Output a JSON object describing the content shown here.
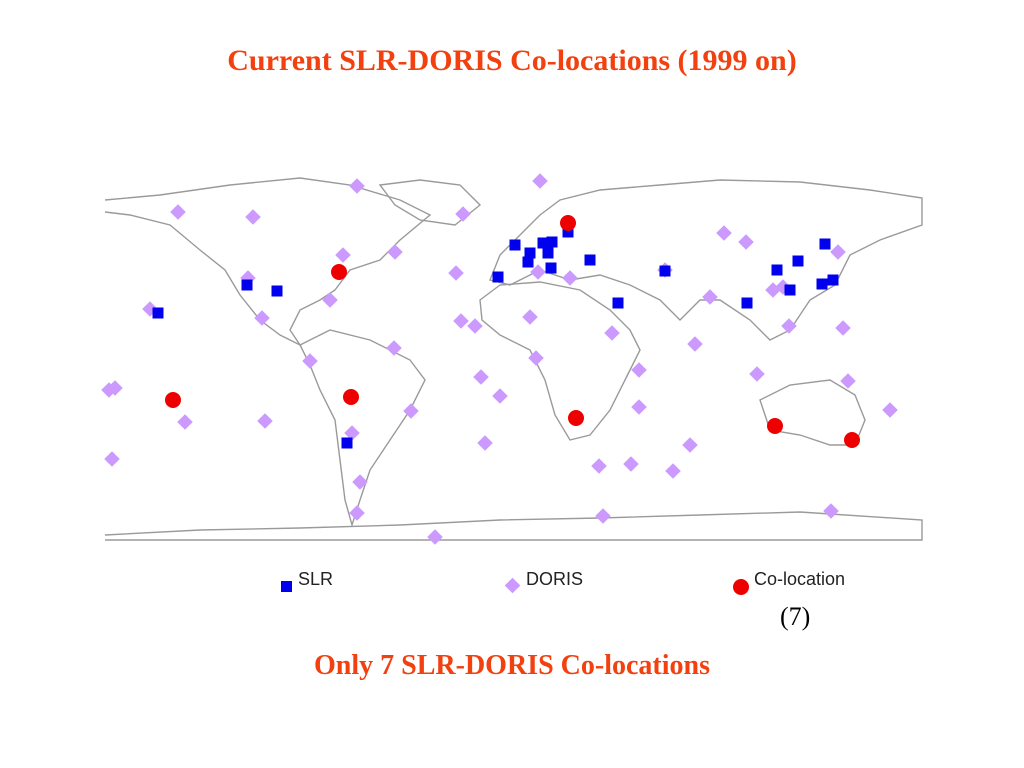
{
  "header": {
    "title": "Current SLR-DORIS Co-locations (1999 on)"
  },
  "legend": {
    "items": [
      "SLR",
      "DORIS",
      "Co-location"
    ],
    "count_note": "(7)"
  },
  "footer": {
    "text": "Only 7 SLR-DORIS Co-locations"
  }
}
